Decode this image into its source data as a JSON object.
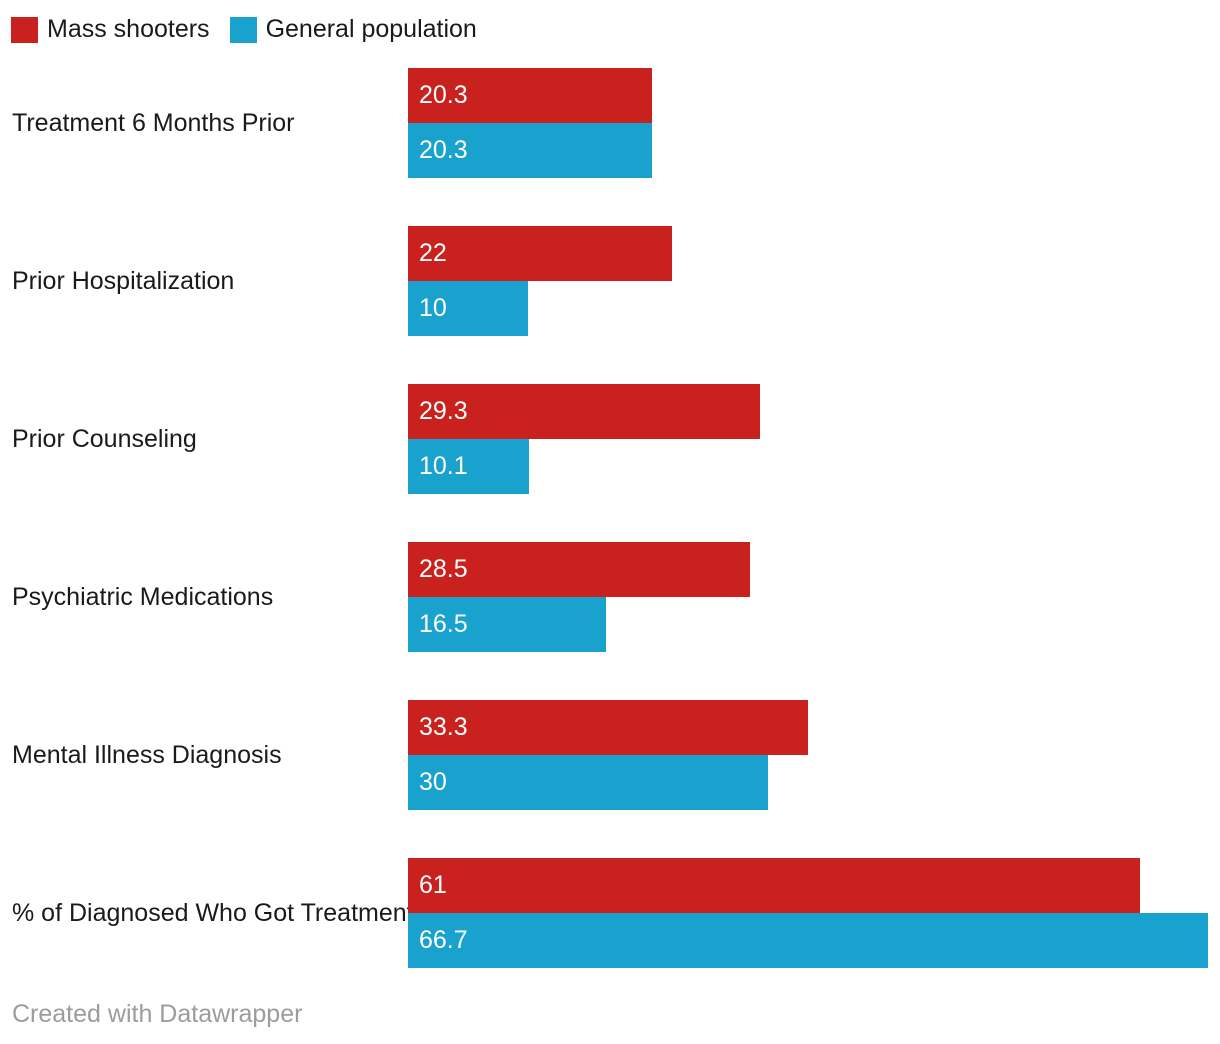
{
  "legend": {
    "items": [
      {
        "label": "Mass shooters",
        "color": "#c8211e"
      },
      {
        "label": "General population",
        "color": "#18a2cd"
      }
    ]
  },
  "footer": {
    "text": "Created with Datawrapper"
  },
  "colors": {
    "mass_shooters": "#c8211e",
    "general_population": "#18a2cd",
    "category_label": "#1a1a1a",
    "value_label": "#ffffff",
    "footer_text": "#9c9c9c",
    "background": "#ffffff"
  },
  "chart_data": {
    "type": "bar",
    "orientation": "horizontal",
    "title": "",
    "xlabel": "",
    "ylabel": "",
    "grid": false,
    "legend_position": "top-left",
    "value_labels": "inside-start",
    "xlim": [
      0,
      67.7
    ],
    "categories": [
      "Treatment 6 Months Prior",
      "Prior Hospitalization",
      "Prior Counseling",
      "Psychiatric Medications",
      "Mental Illness Diagnosis",
      "% of Diagnosed Who Got Treatment"
    ],
    "series": [
      {
        "name": "Mass shooters",
        "color": "#c8211e",
        "values": [
          20.3,
          22,
          29.3,
          28.5,
          33.3,
          61
        ],
        "labels": [
          "20.3",
          "22",
          "29.3",
          "28.5",
          "33.3",
          "61"
        ]
      },
      {
        "name": "General population",
        "color": "#18a2cd",
        "values": [
          20.3,
          10,
          10.1,
          16.5,
          30,
          66.7
        ],
        "labels": [
          "20.3",
          "10",
          "10.1",
          "16.5",
          "30",
          "66.7"
        ]
      }
    ]
  }
}
